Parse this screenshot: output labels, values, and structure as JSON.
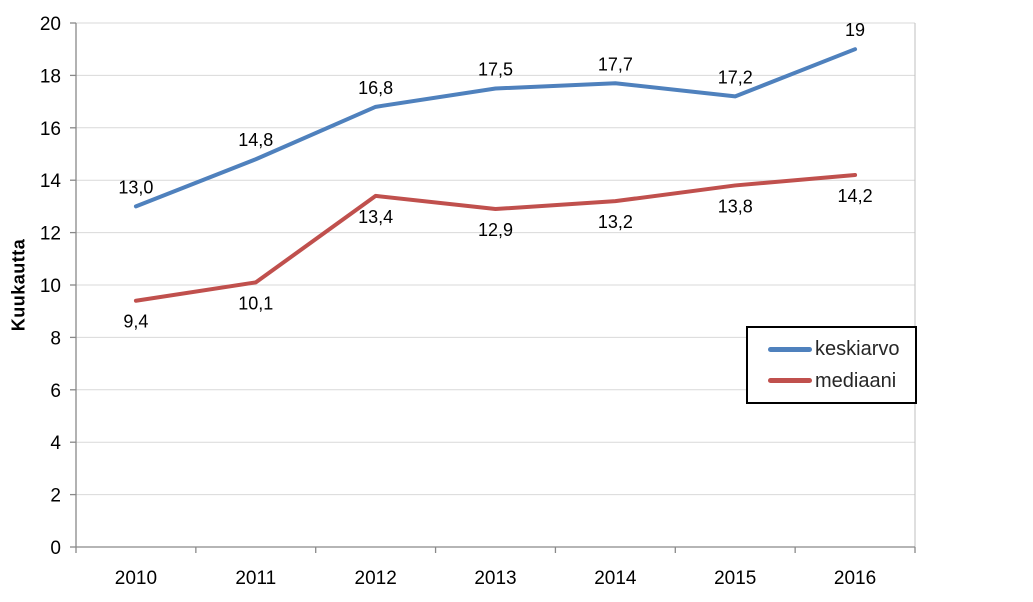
{
  "chart_data": {
    "type": "line",
    "title": "",
    "xlabel": "",
    "ylabel": "Kuukautta",
    "categories": [
      "2010",
      "2011",
      "2012",
      "2013",
      "2014",
      "2015",
      "2016"
    ],
    "series": [
      {
        "name": "keskiarvo",
        "color": "#4F81BD",
        "values": [
          13.0,
          14.8,
          16.8,
          17.5,
          17.7,
          17.2,
          19.0
        ],
        "labels": [
          "13,0",
          "14,8",
          "16,8",
          "17,5",
          "17,7",
          "17,2",
          "19"
        ],
        "label_position": "above"
      },
      {
        "name": "mediaani",
        "color": "#C0504D",
        "values": [
          9.4,
          10.1,
          13.4,
          12.9,
          13.2,
          13.8,
          14.2
        ],
        "labels": [
          "9,4",
          "10,1",
          "13,4",
          "12,9",
          "13,2",
          "13,8",
          "14,2"
        ],
        "label_position": "below"
      }
    ],
    "ylim": [
      0,
      20
    ],
    "ytick_step": 2,
    "ytick_labels": [
      "0",
      "2",
      "4",
      "6",
      "8",
      "10",
      "12",
      "14",
      "16",
      "18",
      "20"
    ],
    "grid": true,
    "legend_position": "middle-right",
    "colors": {
      "gridline": "#D9D9D9",
      "axis_line": "#898989",
      "plot_border": "#BFBFBF",
      "tick_label": "#000000",
      "data_label": "#000000",
      "legend_border": "#000000"
    }
  }
}
